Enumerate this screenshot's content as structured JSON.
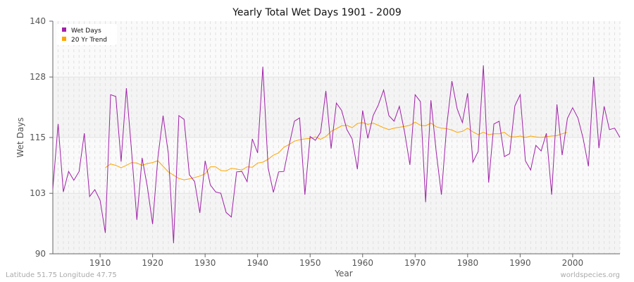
{
  "chart_data": {
    "type": "line",
    "title": "Yearly Total Wet Days 1901 - 2009",
    "xlabel": "Year",
    "ylabel": "Wet Days",
    "xlim": [
      1901,
      2009
    ],
    "ylim": [
      90,
      140
    ],
    "yticks": [
      90,
      103,
      115,
      128,
      140
    ],
    "xticks": [
      1910,
      1920,
      1930,
      1940,
      1950,
      1960,
      1970,
      1980,
      1990,
      2000
    ],
    "grid": true,
    "legend_position": "top-left",
    "series": [
      {
        "name": "Wet Days",
        "color": "#a020a8",
        "start_year": 1901,
        "values": [
          104,
          117.9,
          103.3,
          107.7,
          105.8,
          107.7,
          115.9,
          102.3,
          103.8,
          101.5,
          94.5,
          124.2,
          123.8,
          109.8,
          125.6,
          112,
          97.3,
          110.6,
          104.4,
          96.4,
          110.6,
          119.7,
          111.5,
          92.3,
          119.7,
          118.9,
          107,
          105.5,
          98.8,
          110,
          104.8,
          103.3,
          103,
          98.9,
          97.9,
          107.6,
          107.7,
          105.5,
          114.7,
          111.7,
          130.2,
          108.5,
          103.2,
          107.6,
          107.7,
          113.3,
          118.5,
          119.2,
          102.7,
          115.2,
          114.4,
          116.1,
          125,
          112.6,
          122.4,
          120.8,
          116.7,
          114.7,
          108.2,
          120.8,
          114.8,
          119.7,
          122,
          125.2,
          119.7,
          118.5,
          121.7,
          116.1,
          109.1,
          124.2,
          122.7,
          101.1,
          123,
          112.1,
          102.7,
          117.3,
          127.1,
          121.2,
          118.2,
          124.5,
          109.7,
          112,
          130.5,
          105.3,
          117.9,
          118.5,
          110.9,
          111.5,
          121.8,
          124.2,
          110,
          108,
          113.3,
          112.1,
          115.9,
          102.7,
          122.1,
          111.2,
          119.1,
          121.4,
          119.2,
          114.8,
          108.8,
          128,
          112.7,
          121.7,
          116.7,
          117,
          115
        ]
      },
      {
        "name": "20 Yr Trend",
        "color": "#ffa500",
        "start_year": 1911,
        "values": [
          108.5,
          109.3,
          109,
          108.5,
          109,
          109.6,
          109.5,
          109,
          109.4,
          109.6,
          110,
          108.8,
          107.6,
          106.9,
          106.2,
          105.9,
          106.1,
          106.4,
          106.7,
          107.2,
          108.7,
          108.7,
          107.9,
          107.8,
          108.4,
          108.2,
          108,
          108.7,
          108.6,
          109.5,
          109.7,
          110.3,
          111.2,
          111.7,
          112.9,
          113.5,
          114.2,
          114.5,
          114.7,
          114.8,
          115.1,
          114.6,
          115.2,
          116.3,
          116.9,
          117.5,
          117.6,
          117.1,
          118,
          118.2,
          117.8,
          118.1,
          117.6,
          117.1,
          116.7,
          117,
          117.2,
          117.4,
          117.6,
          118.3,
          117.6,
          117.5,
          118.1,
          117.3,
          117,
          116.9,
          116.6,
          116.1,
          116.3,
          117,
          116.2,
          115.6,
          116.1,
          115.6,
          115.8,
          115.8,
          116.1,
          115.2,
          115.1,
          115.3,
          115,
          115.3,
          115.1,
          115,
          115.2,
          115.3,
          115.4,
          115.8,
          116.1
        ]
      }
    ]
  },
  "footer": {
    "location": "Latitude 51.75 Longitude 47.75",
    "source": "worldspecies.org"
  }
}
